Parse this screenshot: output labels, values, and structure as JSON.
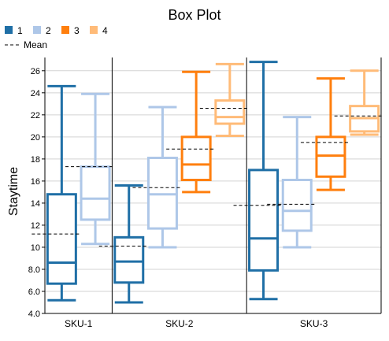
{
  "chart_data": {
    "type": "box",
    "title": "Box Plot",
    "ylabel": "Staytime",
    "xlabel": "",
    "ylim": [
      4,
      27.2
    ],
    "yticks": [
      "4.0",
      "6.0",
      "8.0",
      "10",
      "12",
      "14",
      "16",
      "18",
      "20",
      "22",
      "24",
      "26"
    ],
    "grid": true,
    "legend_position": "top-left",
    "legend": [
      {
        "name": "1",
        "color": "#1f6fa6"
      },
      {
        "name": "2",
        "color": "#aec7e8"
      },
      {
        "name": "3",
        "color": "#ff7f0e"
      },
      {
        "name": "4",
        "color": "#ffbb78"
      }
    ],
    "mean_label": "Mean",
    "categories": [
      "SKU-1",
      "SKU-2",
      "SKU-3"
    ],
    "series": [
      {
        "name": "1",
        "boxes": [
          {
            "category": "SKU-1",
            "min": 5.2,
            "q1": 6.7,
            "median": 8.6,
            "q3": 14.8,
            "max": 24.6,
            "mean": 11.2
          },
          {
            "category": "SKU-2",
            "min": 5.0,
            "q1": 6.8,
            "median": 8.7,
            "q3": 10.9,
            "max": 15.6,
            "mean": 10.1
          },
          {
            "category": "SKU-3",
            "min": 5.3,
            "q1": 7.9,
            "median": 10.8,
            "q3": 17.0,
            "max": 26.8,
            "mean": 13.8
          }
        ]
      },
      {
        "name": "2",
        "boxes": [
          {
            "category": "SKU-1",
            "min": 10.3,
            "q1": 12.5,
            "median": 14.4,
            "q3": 17.3,
            "max": 23.9,
            "mean": 17.3
          },
          {
            "category": "SKU-2",
            "min": 10.0,
            "q1": 11.7,
            "median": 14.8,
            "q3": 18.1,
            "max": 22.7,
            "mean": 15.4
          },
          {
            "category": "SKU-3",
            "min": 10.0,
            "q1": 11.5,
            "median": 13.3,
            "q3": 16.1,
            "max": 21.8,
            "mean": 13.9
          }
        ]
      },
      {
        "name": "3",
        "boxes": [
          {
            "category": "SKU-2",
            "min": 15.0,
            "q1": 16.1,
            "median": 17.5,
            "q3": 20.0,
            "max": 25.9,
            "mean": 18.9
          },
          {
            "category": "SKU-3",
            "min": 15.2,
            "q1": 16.4,
            "median": 18.3,
            "q3": 20.0,
            "max": 25.3,
            "mean": 19.5
          }
        ]
      },
      {
        "name": "4",
        "boxes": [
          {
            "category": "SKU-2",
            "min": 20.1,
            "q1": 21.2,
            "median": 21.8,
            "q3": 23.3,
            "max": 26.6,
            "mean": 22.6
          },
          {
            "category": "SKU-3",
            "min": 20.2,
            "q1": 20.5,
            "median": 21.7,
            "q3": 22.8,
            "max": 26.0,
            "mean": 21.9
          }
        ]
      }
    ]
  }
}
